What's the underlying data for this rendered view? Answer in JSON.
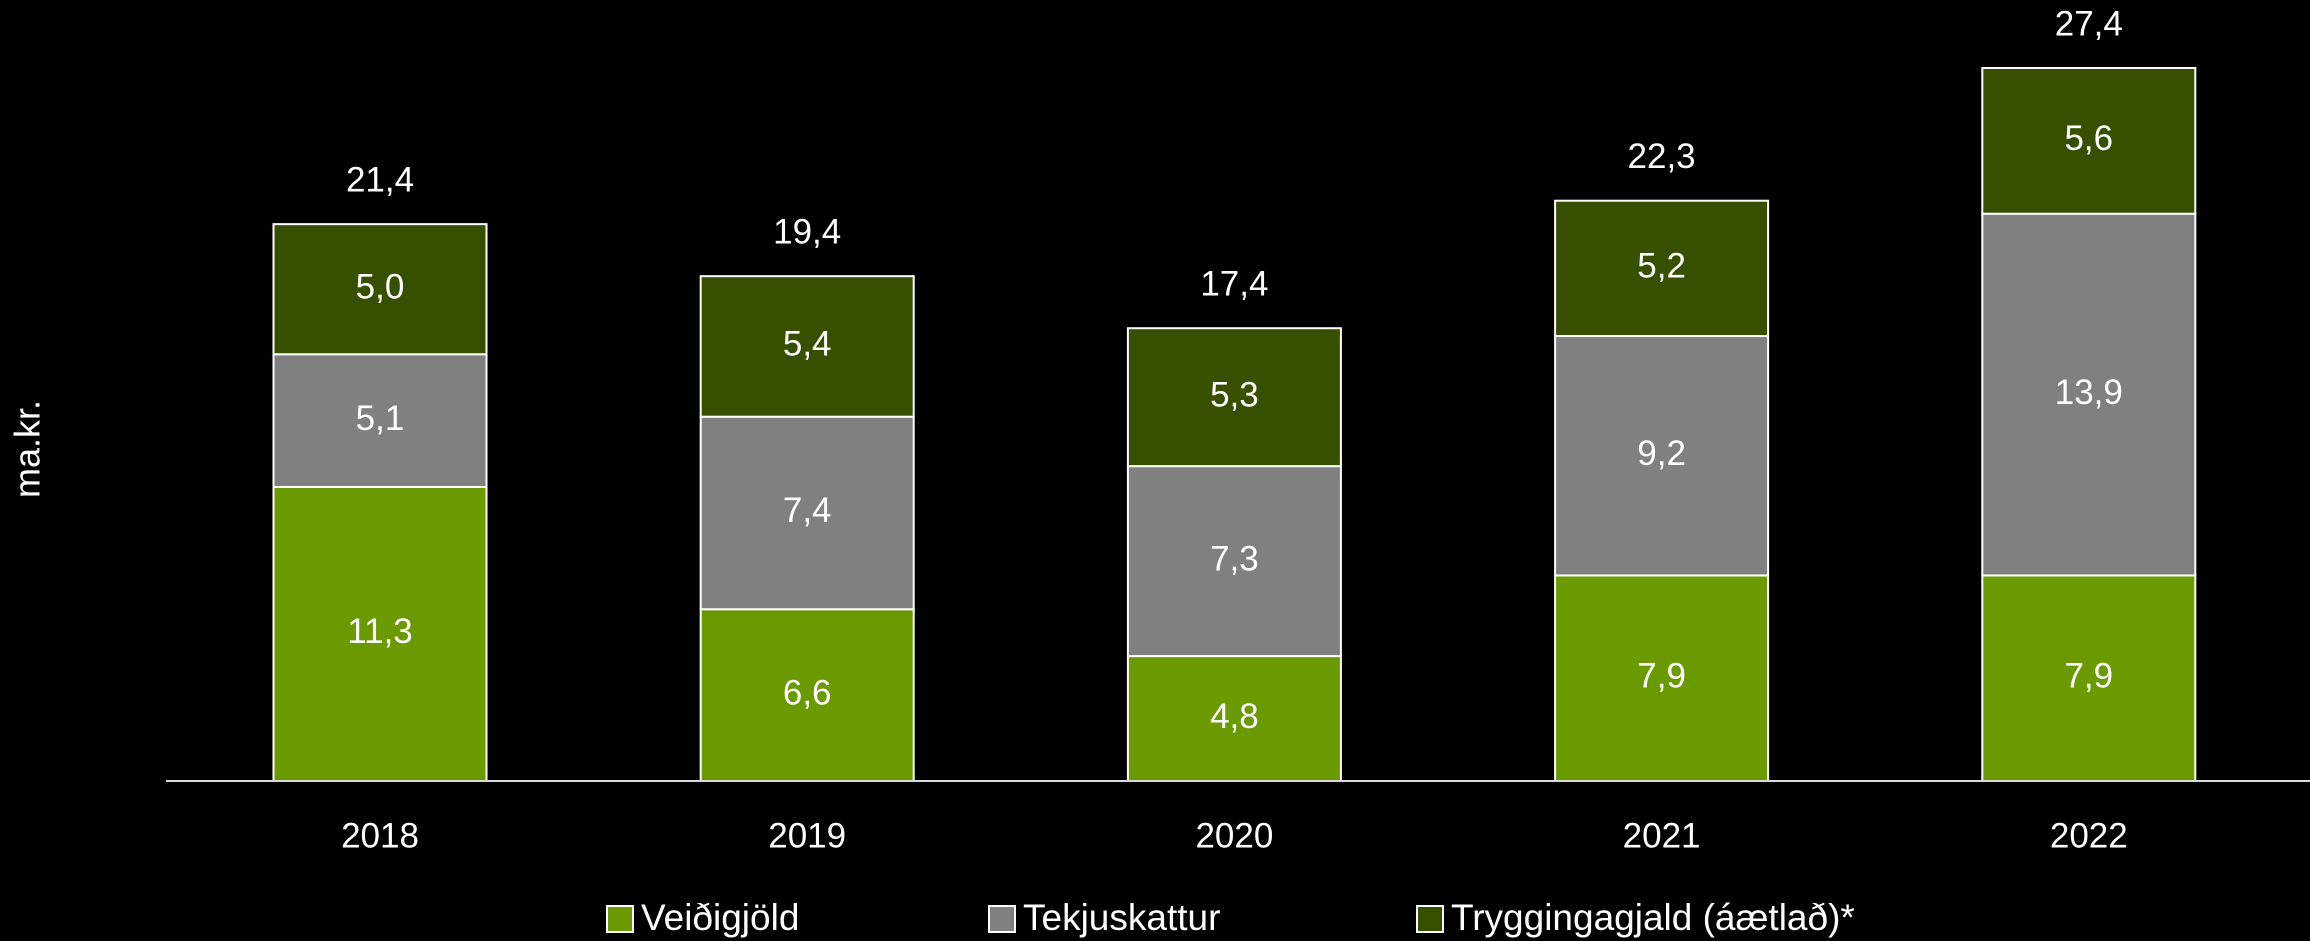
{
  "chart_data": {
    "type": "stacked_bar",
    "y_label": "ma.kr.",
    "categories": [
      "2018",
      "2019",
      "2020",
      "2021",
      "2022"
    ],
    "series": [
      {
        "name": "Veiðigjöld",
        "color": "#6a9a00",
        "values": [
          11.3,
          6.6,
          4.8,
          7.9,
          7.9
        ],
        "value_labels": [
          "11,3",
          "6,6",
          "4,8",
          "7,9",
          "7,9"
        ]
      },
      {
        "name": "Tekjuskattur",
        "color": "#808080",
        "values": [
          5.1,
          7.4,
          7.3,
          9.2,
          13.9
        ],
        "value_labels": [
          "5,1",
          "7,4",
          "7,3",
          "9,2",
          "13,9"
        ]
      },
      {
        "name": "Tryggingagjald (áætlað)*",
        "color": "#375000",
        "values": [
          5.0,
          5.4,
          5.3,
          5.2,
          5.6
        ],
        "value_labels": [
          "5,0",
          "5,4",
          "5,3",
          "5,2",
          "5,6"
        ]
      }
    ],
    "totals": [
      21.4,
      19.4,
      17.4,
      22.3,
      27.4
    ],
    "total_labels": [
      "21,4",
      "19,4",
      "17,4",
      "22,3",
      "27,4"
    ],
    "legend": "bottom"
  }
}
